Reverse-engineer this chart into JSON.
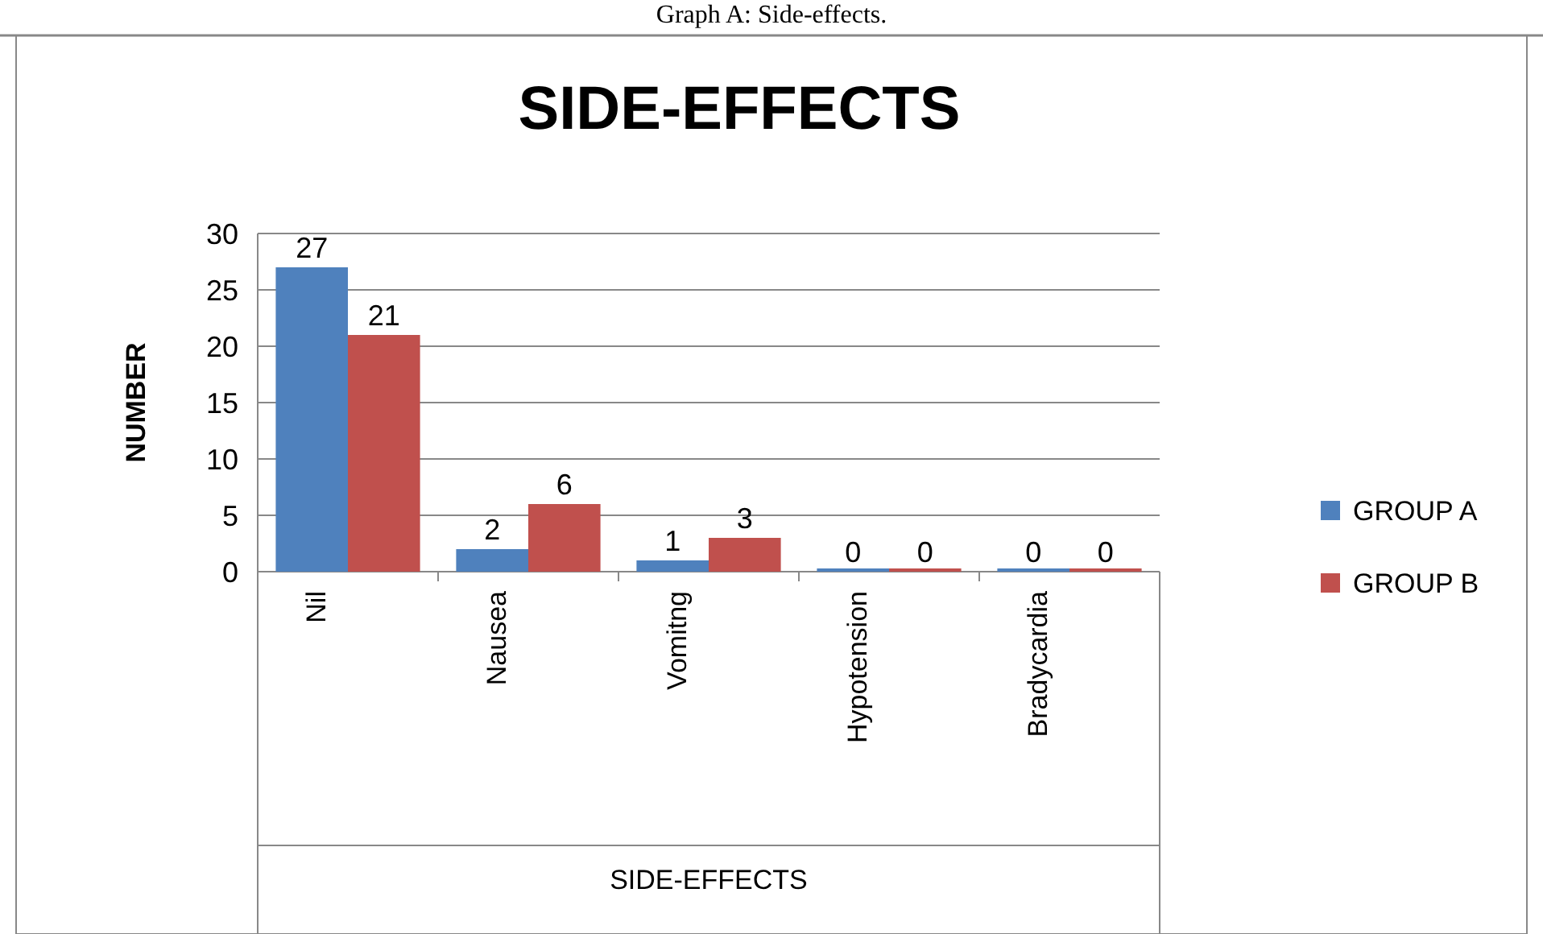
{
  "chart_data": {
    "type": "bar",
    "title": "SIDE-EFFECTS",
    "xlabel": "SIDE-EFFECTS",
    "ylabel": "NUMBER",
    "annotations": [
      "Graph A: Side-effects."
    ],
    "categories": [
      "Nil",
      "Nausea",
      "Vomitng",
      "Hypotension",
      "Bradycardia"
    ],
    "series": [
      {
        "name": "GROUP A",
        "color": "#4f81bd",
        "values": [
          27,
          2,
          1,
          0,
          0
        ]
      },
      {
        "name": "GROUP B",
        "color": "#c0504d",
        "values": [
          21,
          6,
          3,
          0,
          0
        ]
      }
    ],
    "ylim": [
      0,
      30
    ],
    "yticks": [
      0,
      5,
      10,
      15,
      20,
      25,
      30
    ],
    "grid": "y",
    "data_labels": true,
    "legend": "right"
  }
}
